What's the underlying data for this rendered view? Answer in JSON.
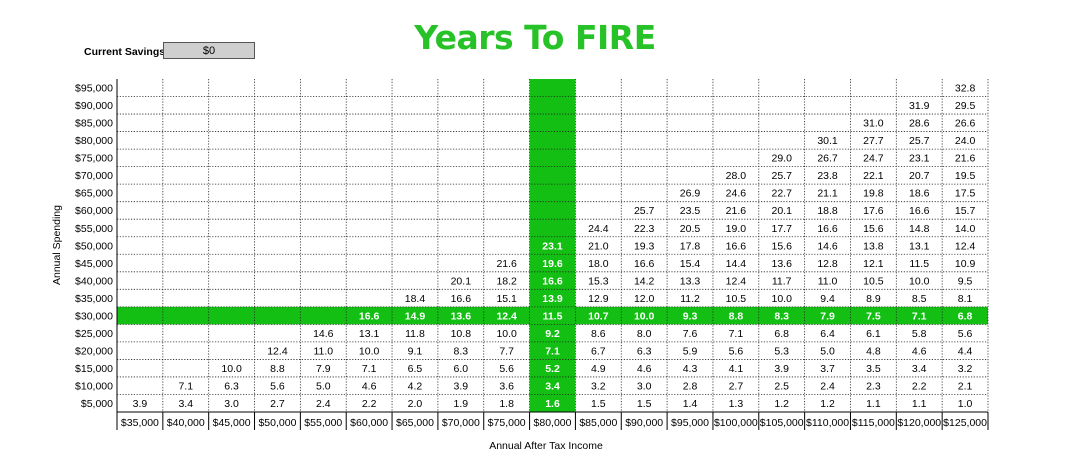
{
  "title": "Years To FIRE",
  "savings": {
    "label": "Current Savings:",
    "value": "$0"
  },
  "colors": {
    "title": "#27c227",
    "highlight": "#13bf13"
  },
  "chart_data": {
    "type": "table",
    "title": "Years To FIRE",
    "xlabel": "Annual After Tax Income",
    "ylabel": "Annual Spending",
    "x": [
      "$35,000",
      "$40,000",
      "$45,000",
      "$50,000",
      "$55,000",
      "$60,000",
      "$65,000",
      "$70,000",
      "$75,000",
      "$80,000",
      "$85,000",
      "$90,000",
      "$95,000",
      "$100,000",
      "$105,000",
      "$110,000",
      "$115,000",
      "$120,000",
      "$125,000"
    ],
    "y": [
      "$95,000",
      "$90,000",
      "$85,000",
      "$80,000",
      "$75,000",
      "$70,000",
      "$65,000",
      "$60,000",
      "$55,000",
      "$50,000",
      "$45,000",
      "$40,000",
      "$35,000",
      "$30,000",
      "$25,000",
      "$20,000",
      "$15,000",
      "$10,000",
      "$5,000"
    ],
    "values": [
      [
        null,
        null,
        null,
        null,
        null,
        null,
        null,
        null,
        null,
        null,
        null,
        null,
        null,
        null,
        null,
        null,
        null,
        null,
        32.8
      ],
      [
        null,
        null,
        null,
        null,
        null,
        null,
        null,
        null,
        null,
        null,
        null,
        null,
        null,
        null,
        null,
        null,
        null,
        31.9,
        29.5
      ],
      [
        null,
        null,
        null,
        null,
        null,
        null,
        null,
        null,
        null,
        null,
        null,
        null,
        null,
        null,
        null,
        null,
        31.0,
        28.6,
        26.6
      ],
      [
        null,
        null,
        null,
        null,
        null,
        null,
        null,
        null,
        null,
        null,
        null,
        null,
        null,
        null,
        null,
        30.1,
        27.7,
        25.7,
        24.0
      ],
      [
        null,
        null,
        null,
        null,
        null,
        null,
        null,
        null,
        null,
        null,
        null,
        null,
        null,
        null,
        29.0,
        26.7,
        24.7,
        23.1,
        21.6
      ],
      [
        null,
        null,
        null,
        null,
        null,
        null,
        null,
        null,
        null,
        null,
        null,
        null,
        null,
        28.0,
        25.7,
        23.8,
        22.1,
        20.7,
        19.5
      ],
      [
        null,
        null,
        null,
        null,
        null,
        null,
        null,
        null,
        null,
        null,
        null,
        null,
        26.9,
        24.6,
        22.7,
        21.1,
        19.8,
        18.6,
        17.5
      ],
      [
        null,
        null,
        null,
        null,
        null,
        null,
        null,
        null,
        null,
        null,
        null,
        25.7,
        23.5,
        21.6,
        20.1,
        18.8,
        17.6,
        16.6,
        15.7
      ],
      [
        null,
        null,
        null,
        null,
        null,
        null,
        null,
        null,
        null,
        null,
        24.4,
        22.3,
        20.5,
        19.0,
        17.7,
        16.6,
        15.6,
        14.8,
        14.0
      ],
      [
        null,
        null,
        null,
        null,
        null,
        null,
        null,
        null,
        null,
        23.1,
        21.0,
        19.3,
        17.8,
        16.6,
        15.6,
        14.6,
        13.8,
        13.1,
        12.4
      ],
      [
        null,
        null,
        null,
        null,
        null,
        null,
        null,
        null,
        21.6,
        19.6,
        18.0,
        16.6,
        15.4,
        14.4,
        13.6,
        12.8,
        12.1,
        11.5,
        10.9
      ],
      [
        null,
        null,
        null,
        null,
        null,
        null,
        null,
        20.1,
        18.2,
        16.6,
        15.3,
        14.2,
        13.3,
        12.4,
        11.7,
        11.0,
        10.5,
        10.0,
        9.5
      ],
      [
        null,
        null,
        null,
        null,
        null,
        null,
        18.4,
        16.6,
        15.1,
        13.9,
        12.9,
        12.0,
        11.2,
        10.5,
        10.0,
        9.4,
        8.9,
        8.5,
        8.1
      ],
      [
        null,
        null,
        null,
        null,
        null,
        16.6,
        14.9,
        13.6,
        12.4,
        11.5,
        10.7,
        10.0,
        9.3,
        8.8,
        8.3,
        7.9,
        7.5,
        7.1,
        6.8
      ],
      [
        null,
        null,
        null,
        null,
        14.6,
        13.1,
        11.8,
        10.8,
        10.0,
        9.2,
        8.6,
        8.0,
        7.6,
        7.1,
        6.8,
        6.4,
        6.1,
        5.8,
        5.6
      ],
      [
        null,
        null,
        null,
        12.4,
        11.0,
        10.0,
        9.1,
        8.3,
        7.7,
        7.1,
        6.7,
        6.3,
        5.9,
        5.6,
        5.3,
        5.0,
        4.8,
        4.6,
        4.4
      ],
      [
        null,
        null,
        10.0,
        8.8,
        7.9,
        7.1,
        6.5,
        6.0,
        5.6,
        5.2,
        4.9,
        4.6,
        4.3,
        4.1,
        3.9,
        3.7,
        3.5,
        3.4,
        3.2
      ],
      [
        null,
        7.1,
        6.3,
        5.6,
        5.0,
        4.6,
        4.2,
        3.9,
        3.6,
        3.4,
        3.2,
        3.0,
        2.8,
        2.7,
        2.5,
        2.4,
        2.3,
        2.2,
        2.1
      ],
      [
        3.9,
        3.4,
        3.0,
        2.7,
        2.4,
        2.2,
        2.0,
        1.9,
        1.8,
        1.6,
        1.5,
        1.5,
        1.4,
        1.3,
        1.2,
        1.2,
        1.1,
        1.1,
        1.0
      ]
    ],
    "highlight": {
      "x": "$80,000",
      "y": "$30,000"
    }
  }
}
